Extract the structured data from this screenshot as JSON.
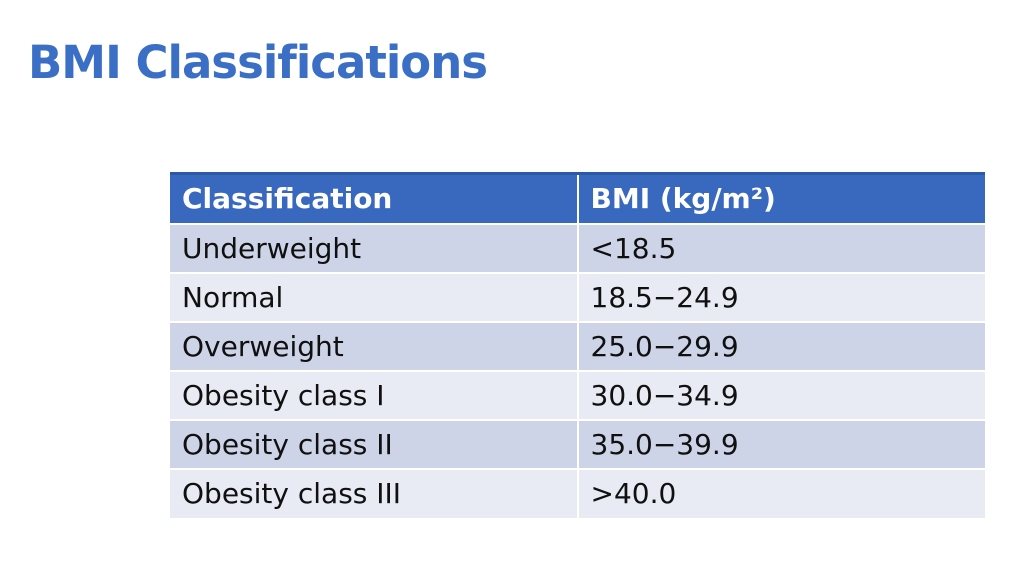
{
  "slide": {
    "title": "BMI Classifications"
  },
  "table": {
    "columns": [
      "Classification",
      "BMI (kg/m²)"
    ],
    "rows": [
      [
        "Underweight",
        "<18.5"
      ],
      [
        "Normal",
        "18.5−24.9"
      ],
      [
        "Overweight",
        "25.0−29.9"
      ],
      [
        "Obesity class I",
        "30.0−34.9"
      ],
      [
        "Obesity class II",
        "35.0−39.9"
      ],
      [
        "Obesity class III",
        ">40.0"
      ]
    ]
  },
  "colors": {
    "title_color": "#3b6fc6",
    "header_bg": "#3869be",
    "header_border": "#2c59a6",
    "header_text": "#ffffff",
    "row_odd_bg": "#ced4e8",
    "row_even_bg": "#e8eaf4",
    "body_text": "#101010",
    "slide_bg": "#ffffff"
  }
}
